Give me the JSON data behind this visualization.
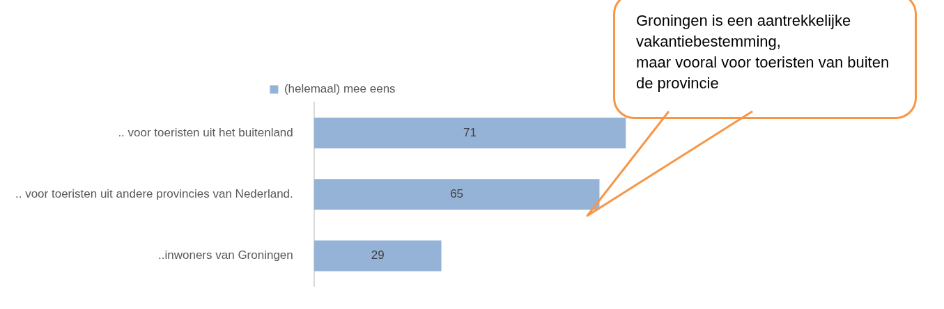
{
  "chart_data": {
    "type": "bar",
    "orientation": "horizontal",
    "categories": [
      ".. voor toeristen uit het buitenland",
      ".. voor toeristen uit andere provincies van Nederland.",
      "..inwoners van Groningen"
    ],
    "series": [
      {
        "name": "(helemaal) mee eens",
        "color": "#95b3d7",
        "values": [
          71,
          65,
          29
        ]
      }
    ],
    "data_labels": true,
    "legend": "top",
    "annotations": [
      "Groningen is een aantrekkelijke vakantiebestemming,\nmaar vooral voor toeristen van buiten de provincie"
    ]
  }
}
